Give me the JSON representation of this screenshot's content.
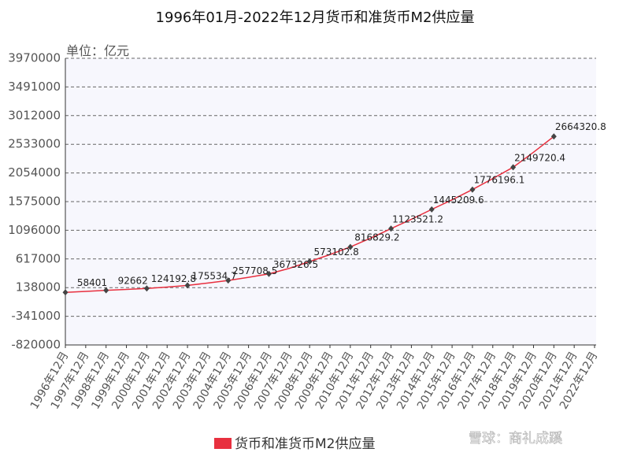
{
  "chart_data": {
    "type": "line",
    "title": "1996年01月-2022年12月货币和准货币M2供应量",
    "unit_label": "单位：亿元",
    "watermark": "雪球：商礼成蹊",
    "categories": [
      "1996年12月",
      "1997年12月",
      "1998年12月",
      "1999年12月",
      "2000年12月",
      "2001年12月",
      "2002年12月",
      "2003年12月",
      "2004年12月",
      "2005年12月",
      "2006年12月",
      "2007年12月",
      "2008年12月",
      "2009年12月",
      "2010年12月",
      "2011年12月",
      "2012年12月",
      "2013年12月",
      "2014年12月",
      "2015年12月",
      "2016年12月",
      "2017年12月",
      "2018年12月",
      "2019年12月",
      "2020年12月",
      "2021年12月",
      "2022年12月"
    ],
    "series": [
      {
        "name": "货币和准货币M2供应量",
        "color": "#e8303f",
        "values": [
          58401,
          75000,
          92662,
          107000,
          124192.8,
          147000,
          175534.7,
          214000,
          257708.5,
          310000,
          367326.5,
          460000,
          573102.8,
          690000,
          816829.2,
          965000,
          1123521.2,
          1280000,
          1445209.6,
          1605000,
          1776196.1,
          1960000,
          2149720.4,
          2400000,
          2664320.8,
          null,
          null
        ],
        "value_labels": [
          "58401",
          null,
          "92662",
          null,
          "124192.8",
          null,
          "175534.7",
          null,
          "257708.5",
          null,
          "367326.5",
          null,
          "573102.8",
          null,
          "816829.2",
          null,
          "1123521.2",
          null,
          "1445209.6",
          null,
          "1776196.1",
          null,
          "2149720.4",
          null,
          "2664320.8",
          null,
          null
        ]
      }
    ],
    "ylim": [
      -820000,
      3970000
    ],
    "yticks": [
      -820000,
      -341000,
      138000,
      617000,
      1096000,
      1575000,
      2054000,
      2533000,
      3012000,
      3491000,
      3970000
    ],
    "grid": true
  }
}
